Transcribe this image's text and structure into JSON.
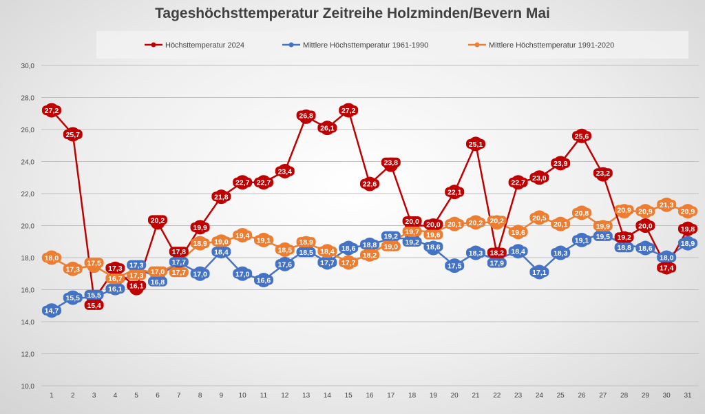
{
  "chart_data": {
    "type": "line",
    "title": "Tageshöchsttemperatur Zeitreihe Holzminden/Bevern Mai",
    "x": [
      1,
      2,
      3,
      4,
      5,
      6,
      7,
      8,
      9,
      10,
      11,
      12,
      13,
      14,
      15,
      16,
      17,
      18,
      19,
      20,
      21,
      22,
      23,
      24,
      25,
      26,
      27,
      28,
      29,
      30,
      31
    ],
    "ylim": [
      10,
      30
    ],
    "yticks": [
      "10,0",
      "12,0",
      "14,0",
      "16,0",
      "18,0",
      "20,0",
      "22,0",
      "24,0",
      "26,0",
      "28,0",
      "30,0"
    ],
    "grid": true,
    "legend_placement": "top",
    "series": [
      {
        "name": "Mittlere Höchsttemperatur 1961-1990",
        "color": "#4472c4",
        "values": [
          14.7,
          15.5,
          15.5,
          16.1,
          17.3,
          16.8,
          17.7,
          17.0,
          18.4,
          17.0,
          16.6,
          17.6,
          18.5,
          17.7,
          18.6,
          18.8,
          19.2,
          19.2,
          18.6,
          17.5,
          18.3,
          17.9,
          18.4,
          17.1,
          18.3,
          19.1,
          19.5,
          18.8,
          18.6,
          18.0,
          18.9
        ]
      },
      {
        "name": "Mittlere Höchsttemperatur 1991-2020",
        "color": "#ed7d31",
        "values": [
          18.0,
          17.3,
          17.5,
          16.7,
          17.3,
          17.0,
          17.7,
          18.9,
          19.0,
          19.4,
          19.1,
          18.5,
          18.9,
          18.4,
          17.7,
          18.2,
          19.0,
          19.7,
          19.6,
          20.1,
          20.2,
          20.2,
          19.6,
          20.5,
          20.1,
          20.8,
          19.9,
          20.9,
          20.9,
          21.3,
          20.9
        ]
      },
      {
        "name": "Höchsttemperatur 2024",
        "color": "#c00000",
        "values": [
          27.2,
          25.7,
          15.4,
          17.3,
          16.1,
          20.2,
          17.8,
          19.9,
          21.8,
          22.7,
          22.7,
          23.4,
          26.8,
          26.1,
          27.2,
          22.6,
          23.8,
          20.0,
          20.0,
          22.1,
          25.1,
          18.2,
          22.7,
          23.0,
          23.9,
          25.6,
          23.2,
          19.2,
          20.0,
          17.4,
          19.8
        ]
      }
    ],
    "legend_order": [
      2,
      0,
      1
    ]
  }
}
